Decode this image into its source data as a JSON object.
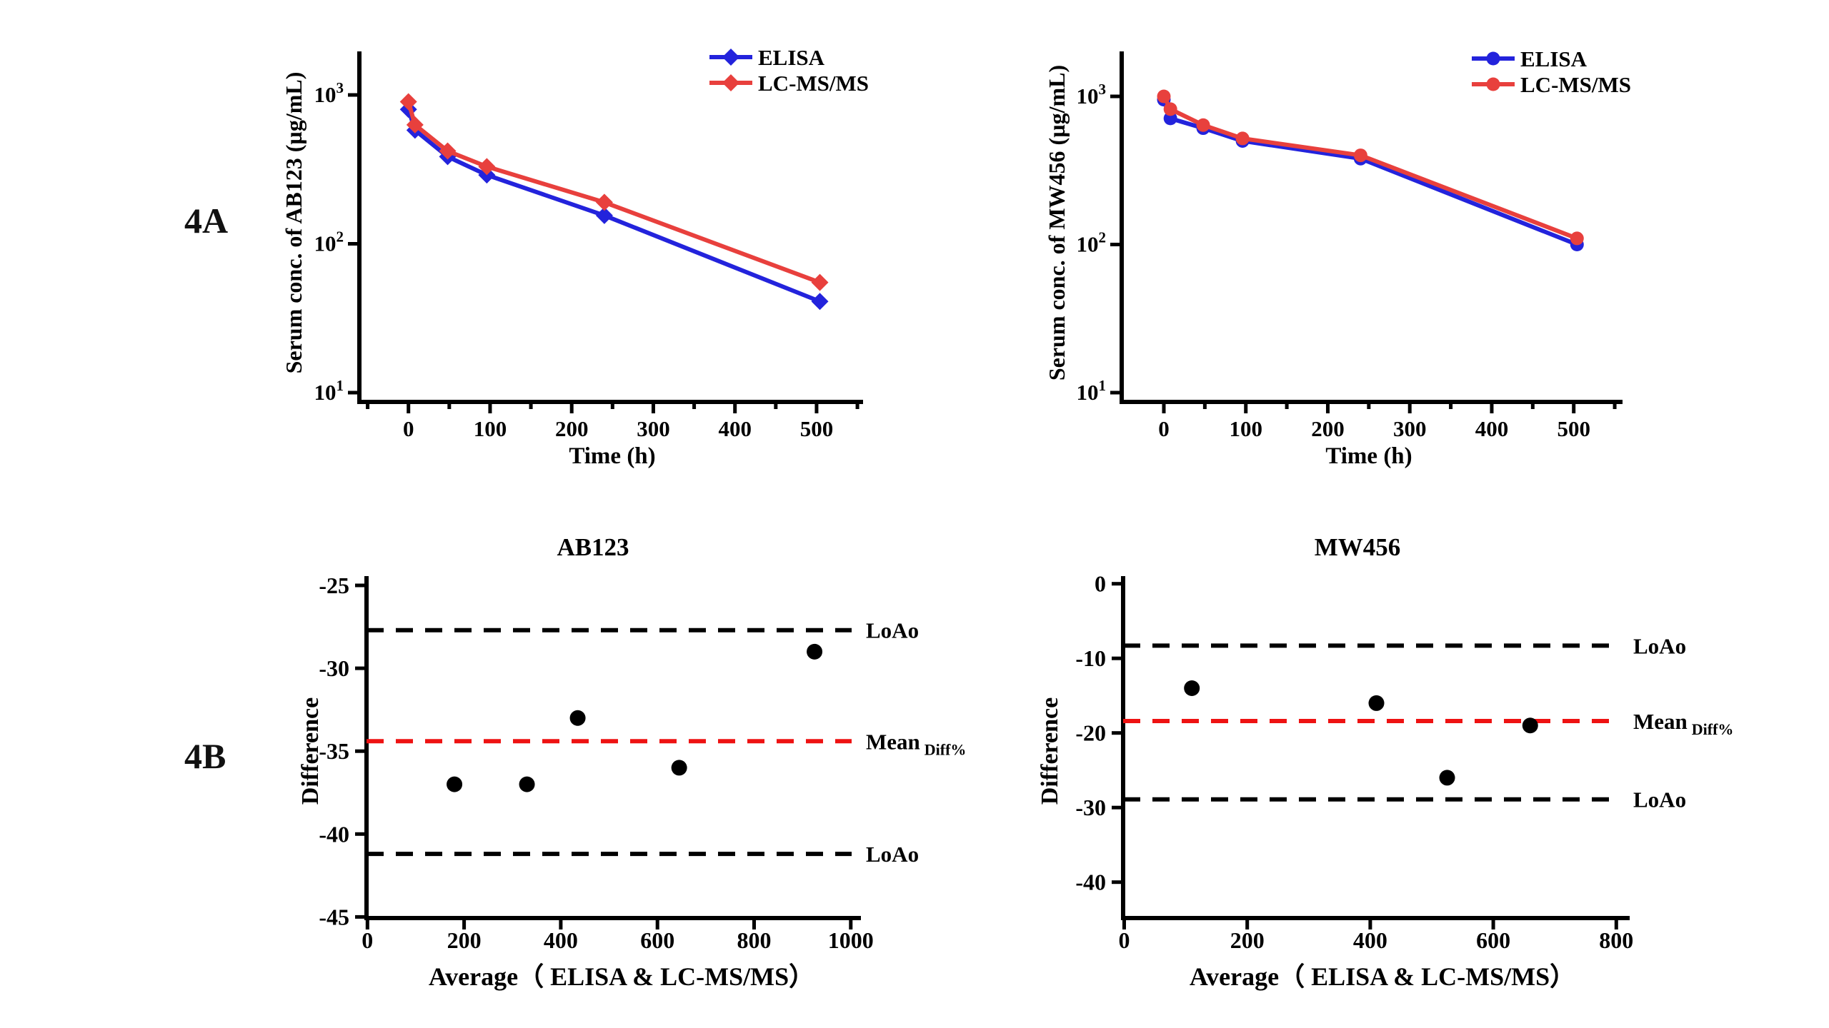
{
  "figure": {
    "background": "#ffffff",
    "panel_labels": {
      "top": "4A",
      "bottom": "4B"
    }
  },
  "colors": {
    "elisa_blue": "#2323DC",
    "lcmsms_red": "#E8403D",
    "mean_dash_red": "#EE1212",
    "loa_dash_black": "#000000",
    "point_black": "#000000",
    "axis_black": "#000000"
  },
  "chart_data": [
    {
      "id": "pk-ab123",
      "type": "line",
      "yscale": "log",
      "ylabel": "Serum conc. of AB123 (µg/mL)",
      "xlabel": "Time (h)",
      "x": [
        0,
        8,
        48,
        96,
        240,
        504
      ],
      "series": [
        {
          "name": "ELISA",
          "color_key": "elisa_blue",
          "marker": "diamond",
          "values": [
            800,
            580,
            385,
            290,
            155,
            41
          ]
        },
        {
          "name": "LC-MS/MS",
          "color_key": "lcmsms_red",
          "marker": "diamond",
          "values": [
            900,
            630,
            420,
            330,
            190,
            55
          ]
        }
      ],
      "xticks": [
        0,
        100,
        200,
        300,
        400,
        500
      ],
      "yticks_exp": [
        1,
        2,
        3
      ],
      "ylim": [
        10,
        1900
      ],
      "xlim": [
        -60,
        555
      ],
      "legend_position": "top-right",
      "grid": false
    },
    {
      "id": "pk-mw456",
      "type": "line",
      "yscale": "log",
      "ylabel": "Serum conc. of MW456 (µg/mL)",
      "xlabel": "Time (h)",
      "x": [
        0,
        8,
        48,
        96,
        240,
        504
      ],
      "series": [
        {
          "name": "ELISA",
          "color_key": "elisa_blue",
          "marker": "circle",
          "values": [
            950,
            710,
            610,
            500,
            380,
            100
          ]
        },
        {
          "name": "LC-MS/MS",
          "color_key": "lcmsms_red",
          "marker": "circle",
          "values": [
            1000,
            820,
            640,
            520,
            400,
            110
          ]
        }
      ],
      "xticks": [
        0,
        100,
        200,
        300,
        400,
        500
      ],
      "yticks_exp": [
        1,
        2,
        3
      ],
      "ylim": [
        10,
        1900
      ],
      "xlim": [
        -60,
        555
      ],
      "legend_position": "top-right",
      "grid": false
    },
    {
      "id": "ba-ab123",
      "type": "scatter",
      "title": "AB123",
      "ylabel": "Difference",
      "xlabel": "Average（ ELISA & LC-MS/MS）",
      "points": [
        [
          180,
          -37
        ],
        [
          330,
          -37
        ],
        [
          435,
          -33
        ],
        [
          645,
          -36
        ],
        [
          925,
          -29
        ]
      ],
      "mean_diff_line": -34.4,
      "loa_upper_line": -27.7,
      "loa_lower_line": -41.2,
      "line_labels": {
        "loa_upper": "LoAo",
        "mean": "Mean",
        "mean_sub": "Diff%",
        "loa_lower": "LoAo"
      },
      "xticks": [
        0,
        200,
        400,
        600,
        800,
        1000
      ],
      "yticks": [
        -25,
        -30,
        -35,
        -40,
        -45
      ],
      "xlim": [
        0,
        1000
      ],
      "ylim": [
        -45,
        -25
      ],
      "grid": false
    },
    {
      "id": "ba-mw456",
      "type": "scatter",
      "title": "MW456",
      "ylabel": "Difference",
      "xlabel": "Average（ ELISA & LC-MS/MS）",
      "points": [
        [
          110,
          -14
        ],
        [
          410,
          -16
        ],
        [
          525,
          -26
        ],
        [
          660,
          -19
        ]
      ],
      "mean_diff_line": -18.4,
      "loa_upper_line": -8.3,
      "loa_lower_line": -28.9,
      "line_labels": {
        "loa_upper": "LoAo",
        "mean": "Mean",
        "mean_sub": "Diff%",
        "loa_lower": "LoAo"
      },
      "xticks": [
        0,
        200,
        400,
        600,
        800
      ],
      "yticks": [
        0,
        -10,
        -20,
        -30,
        -40
      ],
      "xlim": [
        0,
        800
      ],
      "ylim": [
        -45,
        0
      ],
      "grid": false
    }
  ]
}
